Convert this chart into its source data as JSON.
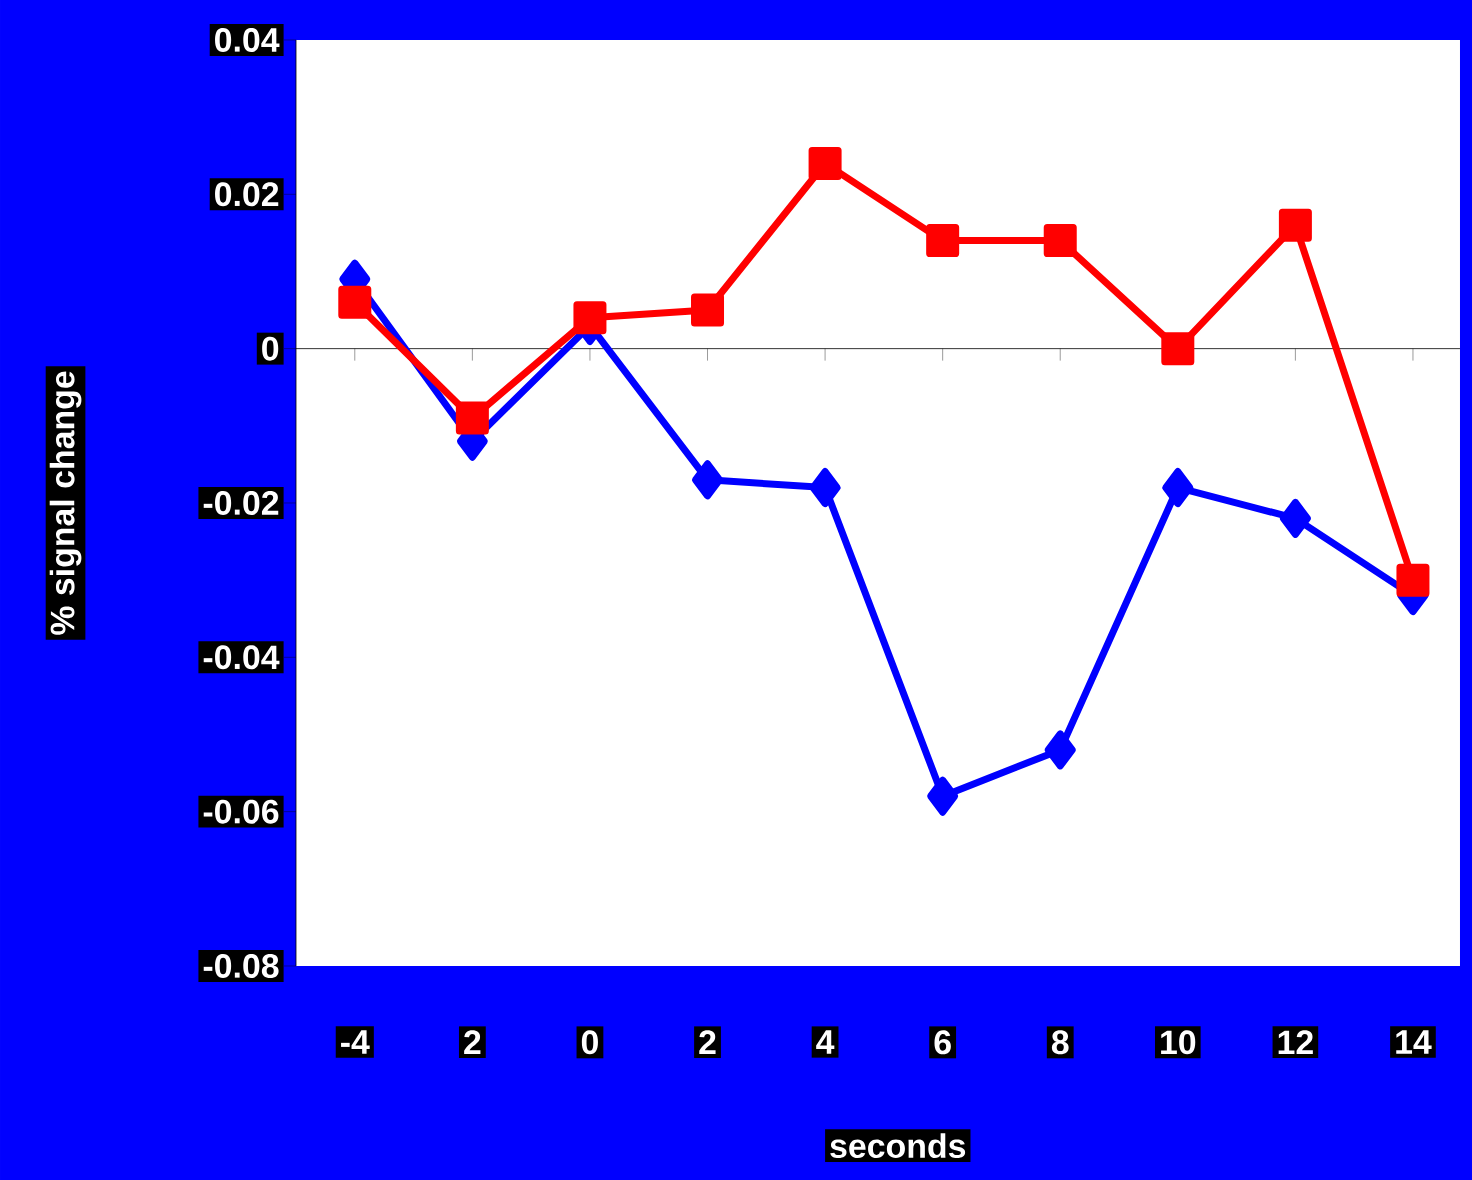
{
  "chart_data": {
    "type": "line",
    "xlabel": "seconds",
    "ylabel": "% signal change",
    "categories": [
      "-4",
      "2",
      "0",
      "2",
      "4",
      "6",
      "8",
      "10",
      "12",
      "14"
    ],
    "ylim": [
      -0.08,
      0.04
    ],
    "yticks": [
      0.04,
      0.02,
      0,
      -0.02,
      -0.04,
      -0.06,
      -0.08
    ],
    "series": [
      {
        "color": "#0000ff",
        "marker": "diamond",
        "values": [
          0.009,
          -0.012,
          0.003,
          -0.017,
          -0.018,
          -0.058,
          -0.052,
          -0.018,
          -0.022,
          -0.032
        ]
      },
      {
        "color": "#ff0000",
        "marker": "square",
        "values": [
          0.006,
          -0.009,
          0.004,
          0.005,
          0.024,
          0.014,
          0.014,
          0,
          0.016,
          -0.03
        ]
      }
    ]
  }
}
